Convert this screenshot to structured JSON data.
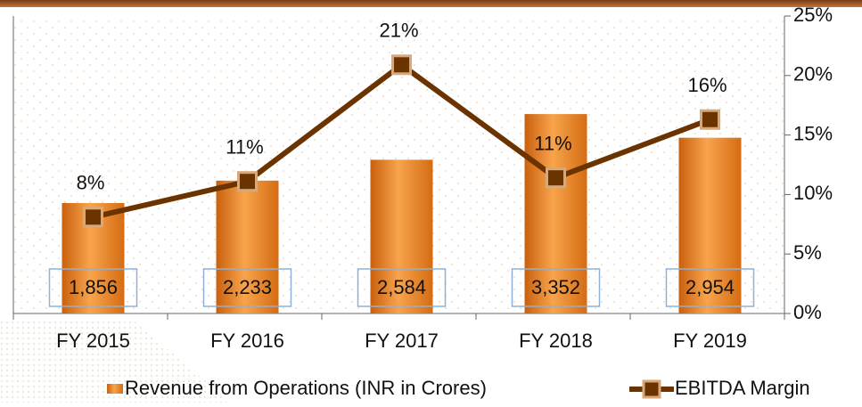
{
  "chart_data": {
    "type": "bar",
    "categories": [
      "FY 2015",
      "FY 2016",
      "FY 2017",
      "FY 2018",
      "FY 2019"
    ],
    "series": [
      {
        "name": "Revenue from Operations (INR in Crores)",
        "type": "bar",
        "color": "#ee8a2a",
        "values": [
          1856,
          2233,
          2584,
          3352,
          2954
        ],
        "value_labels": [
          "1,856",
          "2,233",
          "2,584",
          "3,352",
          "2,954"
        ]
      },
      {
        "name": "EBITDA Margin",
        "type": "line",
        "axis": "y2",
        "color": "#6b3300",
        "values": [
          8.1,
          11.1,
          20.9,
          11.4,
          16.3
        ],
        "value_labels": [
          "8%",
          "11%",
          "21%",
          "11%",
          "16%"
        ]
      }
    ],
    "ylim": [
      0,
      5000
    ],
    "y2lim": [
      0,
      25
    ],
    "y2ticks": [
      {
        "value": 0,
        "label": "0%"
      },
      {
        "value": 5,
        "label": "5%"
      },
      {
        "value": 10,
        "label": "10%"
      },
      {
        "value": 15,
        "label": "15%"
      },
      {
        "value": 20,
        "label": "20%"
      },
      {
        "value": 25,
        "label": "25%"
      }
    ],
    "legend": "bottom"
  }
}
